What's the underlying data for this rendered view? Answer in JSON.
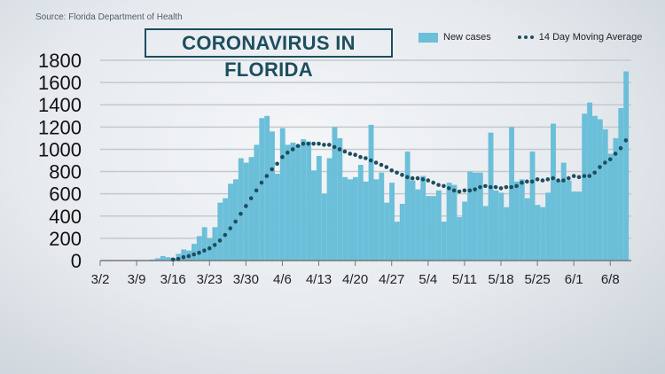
{
  "source": "Source: Florida Department of Health",
  "colors": {
    "bars": "#6bbfd9",
    "average": "#1d4e5f",
    "title": "#1d4e5f"
  },
  "chart_data": {
    "type": "bar",
    "title": "CORONAVIRUS IN FLORIDA",
    "xlabel": "",
    "ylabel": "",
    "ylim": [
      0,
      1800
    ],
    "yticks": [
      0,
      200,
      400,
      600,
      800,
      1000,
      1200,
      1400,
      1600,
      1800
    ],
    "start_date": "3/2",
    "xtick_labels": [
      "3/2",
      "3/9",
      "3/16",
      "3/23",
      "3/30",
      "4/6",
      "4/13",
      "4/20",
      "4/27",
      "5/4",
      "5/11",
      "5/18",
      "5/25",
      "6/1",
      "6/8"
    ],
    "grid": true,
    "legend": "top-right",
    "series": [
      {
        "name": "New cases",
        "type": "bar",
        "values": [
          0,
          0,
          0,
          0,
          2,
          2,
          3,
          5,
          5,
          5,
          10,
          20,
          40,
          30,
          20,
          60,
          100,
          90,
          150,
          220,
          300,
          200,
          300,
          520,
          560,
          690,
          730,
          920,
          880,
          930,
          1040,
          1280,
          1300,
          1160,
          780,
          1190,
          1040,
          1060,
          1040,
          1090,
          1070,
          810,
          940,
          600,
          920,
          1200,
          1100,
          750,
          730,
          750,
          860,
          710,
          1220,
          730,
          790,
          520,
          700,
          350,
          510,
          980,
          720,
          640,
          760,
          580,
          580,
          630,
          350,
          700,
          680,
          390,
          530,
          800,
          790,
          790,
          490,
          1150,
          630,
          610,
          480,
          1200,
          710,
          730,
          560,
          980,
          500,
          480,
          610,
          1230,
          720,
          880,
          720,
          620,
          620,
          1320,
          1420,
          1300,
          1270,
          1180,
          960,
          1100,
          1370,
          1700
        ]
      },
      {
        "name": "14 Day Moving Average",
        "type": "line",
        "start_index": 14,
        "values": [
          10,
          15,
          30,
          40,
          55,
          70,
          90,
          110,
          140,
          180,
          230,
          290,
          350,
          420,
          490,
          560,
          630,
          700,
          760,
          820,
          870,
          930,
          970,
          1000,
          1030,
          1050,
          1050,
          1050,
          1050,
          1040,
          1040,
          1020,
          1000,
          980,
          960,
          950,
          930,
          920,
          900,
          880,
          860,
          840,
          810,
          790,
          770,
          750,
          740,
          740,
          730,
          720,
          700,
          680,
          670,
          650,
          630,
          620,
          630,
          630,
          640,
          660,
          670,
          660,
          660,
          650,
          660,
          660,
          670,
          700,
          710,
          710,
          730,
          720,
          730,
          740,
          720,
          720,
          740,
          760,
          750,
          760,
          760,
          790,
          840,
          880,
          910,
          960,
          1010,
          1080
        ]
      }
    ]
  }
}
